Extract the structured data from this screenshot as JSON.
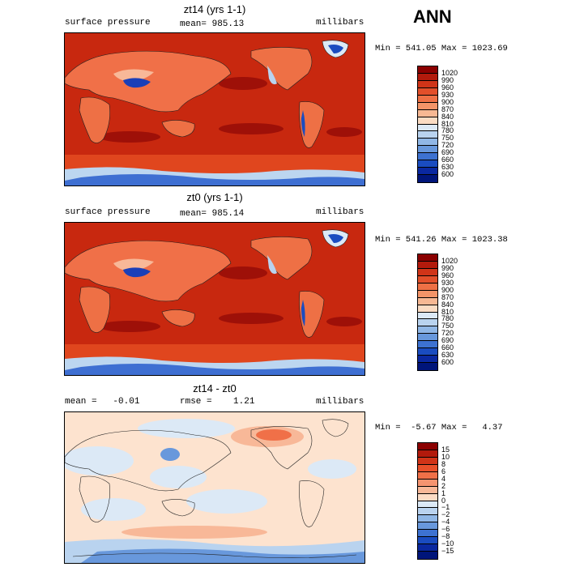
{
  "header": {
    "season": "ANN"
  },
  "panels": [
    {
      "title": "zt14 (yrs 1-1)",
      "left_label": "surface pressure",
      "mean_text": "mean= 985.13",
      "units": "millibars",
      "stats_text": "Min = 541.05 Max = 1023.69",
      "palette": "abs"
    },
    {
      "title": "zt0 (yrs 1-1)",
      "left_label": "surface pressure",
      "mean_text": "mean= 985.14",
      "units": "millibars",
      "stats_text": "Min = 541.26 Max = 1023.38",
      "palette": "abs"
    },
    {
      "title": "zt14 - zt0",
      "left_label": "mean =   -0.01",
      "mean_text": "rmse =    1.21",
      "units": "millibars",
      "stats_text": "Min =  -5.67 Max =   4.37",
      "palette": "diff"
    }
  ],
  "colorbars": {
    "abs": {
      "labels": [
        "1020",
        "990",
        "960",
        "930",
        "900",
        "870",
        "840",
        "810",
        "780",
        "750",
        "720",
        "690",
        "660",
        "630",
        "600"
      ],
      "colors": [
        "#8b0000",
        "#b21a0c",
        "#d03418",
        "#e24f2a",
        "#ee7045",
        "#f39468",
        "#f7b893",
        "#fbdcc3",
        "#dce9f6",
        "#b9d3ef",
        "#90b7e6",
        "#6898dc",
        "#3d72d1",
        "#1a4cc0",
        "#0a28a0",
        "#00157a"
      ]
    },
    "diff": {
      "labels": [
        "15",
        "10",
        "8",
        "6",
        "4",
        "2",
        "1",
        "0",
        "−1",
        "−2",
        "−4",
        "−6",
        "−8",
        "−10",
        "−15"
      ],
      "colors": [
        "#8b0000",
        "#b21a0c",
        "#d03418",
        "#e8502a",
        "#f07048",
        "#f59470",
        "#f8b898",
        "#fddcc5",
        "#dce9f6",
        "#bad3ef",
        "#90b7e6",
        "#6898dc",
        "#3d72d1",
        "#1a4cc0",
        "#0a28a0",
        "#00157a"
      ]
    }
  }
}
